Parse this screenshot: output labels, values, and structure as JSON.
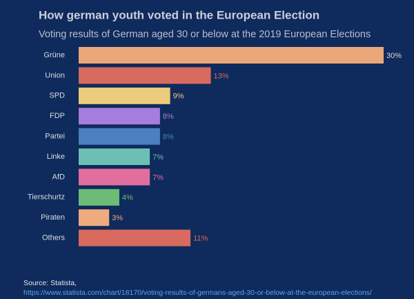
{
  "chart_data": {
    "type": "bar",
    "orientation": "horizontal",
    "title": "How german youth voted in the European Election",
    "subtitle": "Voting results of German aged 30 or below at the 2019 European Elections",
    "categories": [
      "Grüne",
      "Union",
      "SPD",
      "FDP",
      "Partei",
      "Linke",
      "AfD",
      "Tierschurtz",
      "Piraten",
      "Others"
    ],
    "values": [
      30,
      13,
      9,
      8,
      8,
      7,
      7,
      4,
      3,
      11
    ],
    "value_labels": [
      "30%",
      "13%",
      "9%",
      "8%",
      "8%",
      "7%",
      "7%",
      "4%",
      "3%",
      "11%"
    ],
    "colors": [
      "#eaa87a",
      "#d86a5f",
      "#eccb7c",
      "#a57ddd",
      "#4b80c0",
      "#6cbfb3",
      "#e26e9d",
      "#6cbc78",
      "#eeab7e",
      "#d86a5f"
    ],
    "source": "Source: Statista,",
    "source_url": "https://www.statista.com/chart/18170/voting-results-of-germans-aged-30-or-below-at-the-european-elections/"
  }
}
